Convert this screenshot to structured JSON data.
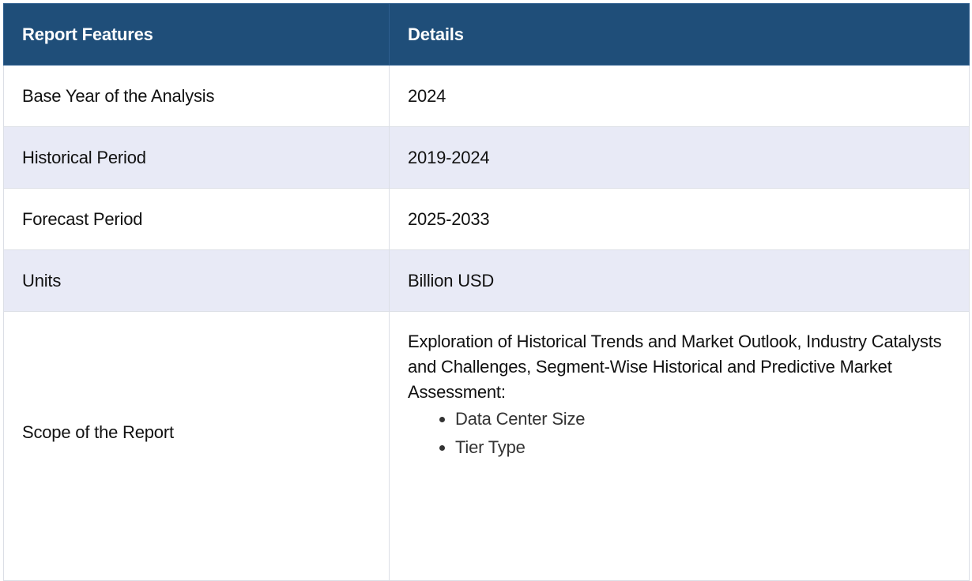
{
  "table": {
    "headers": [
      "Report Features",
      "Details"
    ],
    "rows": [
      {
        "feature": "Base Year of the Analysis",
        "detail": "2024"
      },
      {
        "feature": "Historical Period",
        "detail": "2019-2024"
      },
      {
        "feature": "Forecast Period",
        "detail": "2025-2033"
      },
      {
        "feature": "Units",
        "detail": "Billion USD"
      }
    ],
    "scope": {
      "feature": "Scope of the Report",
      "description": "Exploration of Historical Trends and Market Outlook, Industry Catalysts and Challenges, Segment-Wise Historical and Predictive Market Assessment:",
      "items": [
        "Data Center Size",
        "Tier Type"
      ]
    }
  },
  "colors": {
    "header_bg": "#1f4e79",
    "alt_row_bg": "#e8eaf6",
    "border": "#dcdfe6"
  }
}
